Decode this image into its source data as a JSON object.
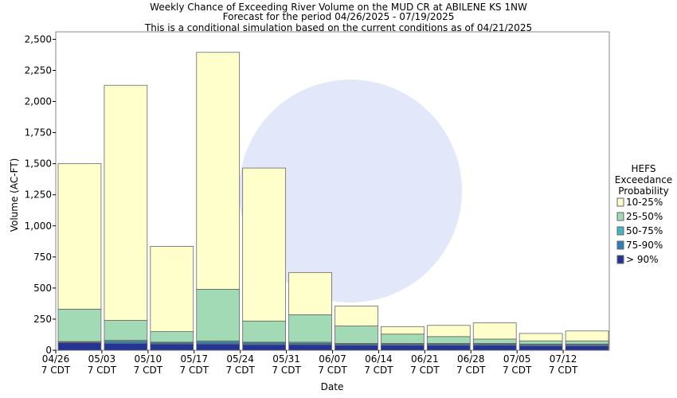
{
  "chart_data": {
    "type": "stacked_bar",
    "title": "Weekly Chance of Exceeding River Volume on the MUD CR at ABILENE KS 1NW",
    "subtitle": [
      "Forecast for the period 04/26/2025 - 07/19/2025",
      "This is a conditional simulation based on the current conditions as of 04/21/2025"
    ],
    "x_label": "Date",
    "y_label": "Volume (AC-FT)",
    "legend_title": [
      "HEFS",
      "Exceedance",
      "Probability"
    ],
    "legend": "right",
    "categories": [
      "04/26\n7 CDT",
      "05/03\n7 CDT",
      "05/10\n7 CDT",
      "05/17\n7 CDT",
      "05/24\n7 CDT",
      "05/31\n7 CDT",
      "06/07\n7 CDT",
      "06/14\n7 CDT",
      "06/21\n7 CDT",
      "06/28\n7 CDT",
      "07/05\n7 CDT",
      "07/12\n7 CDT"
    ],
    "series": [
      {
        "name": "> 90%",
        "color": "#253494",
        "values": [
          60,
          55,
          50,
          50,
          45,
          45,
          40,
          40,
          40,
          40,
          35,
          35
        ]
      },
      {
        "name": "75-90%",
        "color": "#2c7fb8",
        "values": [
          5,
          15,
          10,
          15,
          15,
          10,
          10,
          10,
          10,
          10,
          10,
          10
        ]
      },
      {
        "name": "50-75%",
        "color": "#41b6c4",
        "values": [
          5,
          10,
          5,
          10,
          5,
          10,
          5,
          5,
          5,
          5,
          5,
          5
        ]
      },
      {
        "name": "25-50%",
        "color": "#a1dab4",
        "values": [
          260,
          160,
          85,
          415,
          170,
          220,
          140,
          75,
          55,
          35,
          25,
          25
        ]
      },
      {
        "name": "10-25%",
        "color": "#ffffcc",
        "values": [
          1170,
          1890,
          685,
          1905,
          1230,
          340,
          160,
          60,
          90,
          130,
          60,
          80
        ]
      }
    ],
    "ylim": [
      0,
      2560
    ],
    "yticks": [
      0,
      250,
      500,
      750,
      {
        "value": 1000,
        "label": "1,000"
      },
      {
        "value": 1250,
        "label": "1,250"
      },
      {
        "value": 1500,
        "label": "1,500"
      },
      {
        "value": 1750,
        "label": "1,750"
      },
      {
        "value": 2000,
        "label": "2,000"
      },
      {
        "value": 2250,
        "label": "2,250"
      },
      {
        "value": 2500,
        "label": "2,500"
      }
    ]
  }
}
